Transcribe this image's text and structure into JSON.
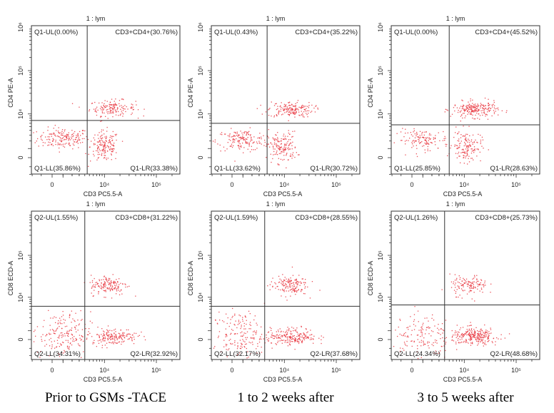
{
  "captions": [
    "Prior to GSMs -TACE",
    "1 to 2 weeks after",
    "3 to 5 weeks after"
  ],
  "colors": {
    "dots": "#e8303a",
    "axis": "#333333"
  },
  "chart_data": [
    {
      "type": "scatter",
      "title": "1 : lym",
      "xlabel": "CD3 PC5.5-A",
      "ylabel": "CD4 PE-A",
      "xticks": [
        {
          "v": 0,
          "label": "0"
        },
        {
          "v": 10000,
          "label": "10⁴"
        },
        {
          "v": 100000,
          "label": "10⁵"
        }
      ],
      "yticks": [
        {
          "v": 0,
          "label": "0"
        },
        {
          "v": 10000,
          "label": "10⁴"
        },
        {
          "v": 100000,
          "label": "10⁵"
        },
        {
          "v": 1000000,
          "label": "10⁶"
        }
      ],
      "gate": {
        "x": 4500,
        "y": 7000
      },
      "quadrants": {
        "UL": "Q1-UL(0.00%)",
        "UR": "CD3+CD4+(30.76%)",
        "LL": "Q1-LL(35.86%)",
        "LR": "Q1-LR(33.38%)"
      },
      "clusters": [
        {
          "x": 1000,
          "y": 2500,
          "n": 170
        },
        {
          "x": 14000,
          "y": 14000,
          "n": 150
        },
        {
          "x": 10000,
          "y": 1300,
          "n": 160
        }
      ]
    },
    {
      "type": "scatter",
      "title": "1 : lym",
      "xlabel": "CD3 PC5.5-A",
      "ylabel": "CD4 PE-A",
      "xticks": [
        {
          "v": 0,
          "label": "0"
        },
        {
          "v": 10000,
          "label": "10⁴"
        },
        {
          "v": 100000,
          "label": "10⁵"
        }
      ],
      "yticks": [
        {
          "v": 0,
          "label": "0"
        },
        {
          "v": 10000,
          "label": "10⁴"
        },
        {
          "v": 100000,
          "label": "10⁵"
        },
        {
          "v": 1000000,
          "label": "10⁶"
        }
      ],
      "gate": {
        "x": 4500,
        "y": 6000
      },
      "quadrants": {
        "UL": "Q1-UL(0.43%)",
        "UR": "CD3+CD4+(35.22%)",
        "LL": "Q1-LL(33.62%)",
        "LR": "Q1-LR(30.72%)"
      },
      "clusters": [
        {
          "x": 900,
          "y": 2200,
          "n": 160
        },
        {
          "x": 13000,
          "y": 13000,
          "n": 170
        },
        {
          "x": 9000,
          "y": 1200,
          "n": 150
        }
      ]
    },
    {
      "type": "scatter",
      "title": "1 : lym",
      "xlabel": "CD3 PC5.5-A",
      "ylabel": "CD4 PE-A",
      "xticks": [
        {
          "v": 0,
          "label": "0"
        },
        {
          "v": 10000,
          "label": "10⁴"
        },
        {
          "v": 100000,
          "label": "10⁵"
        }
      ],
      "yticks": [
        {
          "v": 0,
          "label": "0"
        },
        {
          "v": 10000,
          "label": "10⁴"
        },
        {
          "v": 100000,
          "label": "10⁵"
        },
        {
          "v": 1000000,
          "label": "10⁶"
        }
      ],
      "gate": {
        "x": 5000,
        "y": 5500
      },
      "quadrants": {
        "UL": "Q1-UL(0.00%)",
        "UR": "CD3+CD4+(45.52%)",
        "LL": "Q1-LL(25.85%)",
        "LR": "Q1-LR(28.63%)"
      },
      "clusters": [
        {
          "x": 1000,
          "y": 2200,
          "n": 130
        },
        {
          "x": 16000,
          "y": 13000,
          "n": 220
        },
        {
          "x": 11000,
          "y": 1300,
          "n": 140
        }
      ]
    },
    {
      "type": "scatter",
      "title": "1 : lym",
      "xlabel": "CD3 PC5.5-A",
      "ylabel": "CD8 ECD-A",
      "xticks": [
        {
          "v": 0,
          "label": "0"
        },
        {
          "v": 10000,
          "label": "10⁴"
        },
        {
          "v": 100000,
          "label": "10⁵"
        }
      ],
      "yticks": [
        {
          "v": 0,
          "label": "0"
        },
        {
          "v": 10000,
          "label": "10⁴"
        },
        {
          "v": 100000,
          "label": "10⁵"
        }
      ],
      "gate": {
        "x": 4000,
        "y": 6000
      },
      "quadrants": {
        "UL": "Q2-UL(1.55%)",
        "UR": "CD3+CD8+(31.22%)",
        "LL": "Q2-LL(34.31%)",
        "LR": "Q2-LR(32.92%)"
      },
      "clusters": [
        {
          "x": 800,
          "y": 500,
          "n": 200
        },
        {
          "x": 12000,
          "y": 20000,
          "n": 150
        },
        {
          "x": 15000,
          "y": 400,
          "n": 170
        }
      ]
    },
    {
      "type": "scatter",
      "title": "1 : lym",
      "xlabel": "CD3 PC5.5-A",
      "ylabel": "CD8 ECD-A",
      "xticks": [
        {
          "v": 0,
          "label": "0"
        },
        {
          "v": 10000,
          "label": "10⁴"
        },
        {
          "v": 100000,
          "label": "10⁵"
        }
      ],
      "yticks": [
        {
          "v": 0,
          "label": "0"
        },
        {
          "v": 10000,
          "label": "10⁴"
        },
        {
          "v": 100000,
          "label": "10⁵"
        }
      ],
      "gate": {
        "x": 4000,
        "y": 6000
      },
      "quadrants": {
        "UL": "Q2-UL(1.59%)",
        "UR": "CD3+CD8+(28.55%)",
        "LL": "Q2-LL(32.17%)",
        "LR": "Q2-LR(37.68%)"
      },
      "clusters": [
        {
          "x": 800,
          "y": 500,
          "n": 190
        },
        {
          "x": 12000,
          "y": 20000,
          "n": 150
        },
        {
          "x": 15000,
          "y": 400,
          "n": 200
        }
      ]
    },
    {
      "type": "scatter",
      "title": "1 : lym",
      "xlabel": "CD3 PC5.5-A",
      "ylabel": "CD8 ECD-A",
      "xticks": [
        {
          "v": 0,
          "label": "0"
        },
        {
          "v": 10000,
          "label": "10⁴"
        },
        {
          "v": 100000,
          "label": "10⁵"
        }
      ],
      "yticks": [
        {
          "v": 0,
          "label": "0"
        },
        {
          "v": 10000,
          "label": "10⁴"
        },
        {
          "v": 100000,
          "label": "10⁵"
        }
      ],
      "gate": {
        "x": 4000,
        "y": 6500
      },
      "quadrants": {
        "UL": "Q2-UL(1.26%)",
        "UR": "CD3+CD8+(25.73%)",
        "LL": "Q2-LL(24.34%)",
        "LR": "Q2-LR(48.68%)"
      },
      "clusters": [
        {
          "x": 800,
          "y": 500,
          "n": 150
        },
        {
          "x": 12000,
          "y": 20000,
          "n": 130
        },
        {
          "x": 16000,
          "y": 400,
          "n": 250
        }
      ]
    }
  ]
}
